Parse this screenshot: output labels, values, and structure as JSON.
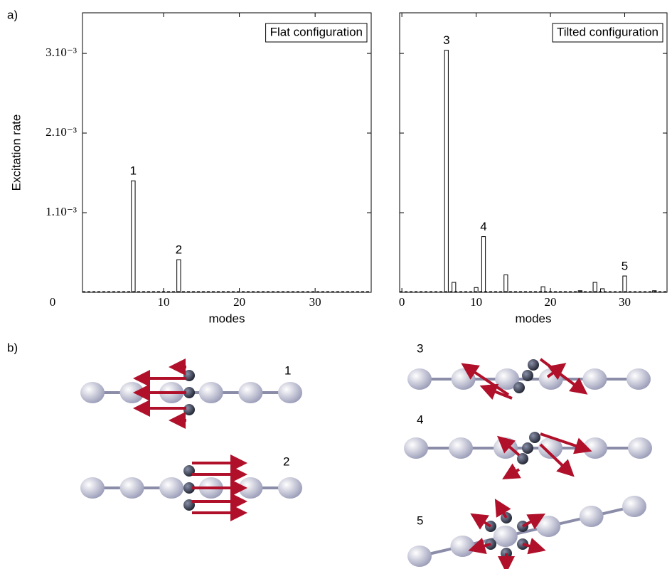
{
  "panel_labels": [
    "a)",
    "b)"
  ],
  "structure_labels": [
    "1",
    "2",
    "3",
    "4",
    "5"
  ],
  "chart_data": [
    {
      "type": "bar",
      "title": "Flat configuration",
      "xlabel": "modes",
      "ylabel": "Excitation rate",
      "x": [
        6,
        12
      ],
      "values": [
        0.0014,
        0.00041
      ],
      "bar_labels": [
        "1",
        "2"
      ],
      "color": "#ffffff",
      "xlim": [
        -0.7,
        37.4
      ],
      "ylim": [
        0,
        0.00351
      ],
      "xticks": [
        10,
        20,
        30
      ],
      "yticks": [
        0,
        {
          "value": 0.001,
          "label": "1.10⁻³"
        },
        {
          "value": 0.002,
          "label": "2.10⁻³"
        },
        {
          "value": 0.003,
          "label": "3.10⁻³"
        }
      ],
      "ytick_labels": true,
      "legend": "upper right"
    },
    {
      "type": "bar",
      "title": "Tilted configuration",
      "xlabel": "modes",
      "x": [
        6,
        7,
        10,
        11,
        14,
        19,
        24,
        26,
        27,
        30,
        34
      ],
      "values": [
        0.00304,
        0.000125,
        6e-05,
        0.0007,
        0.00022,
        7e-05,
        2e-05,
        0.000125,
        4.5e-05,
        0.000205,
        2e-05
      ],
      "bar_labels": [
        "3",
        null,
        null,
        "4",
        null,
        null,
        null,
        null,
        null,
        "5",
        null
      ],
      "color": "#ffffff",
      "xlim": [
        -0.3,
        35.7
      ],
      "ylim": [
        0,
        0.00351
      ],
      "xticks": [
        0,
        10,
        20,
        30
      ],
      "yticks": [
        0.001,
        0.002,
        0.003
      ],
      "ytick_labels": false,
      "legend": "upper right"
    }
  ]
}
